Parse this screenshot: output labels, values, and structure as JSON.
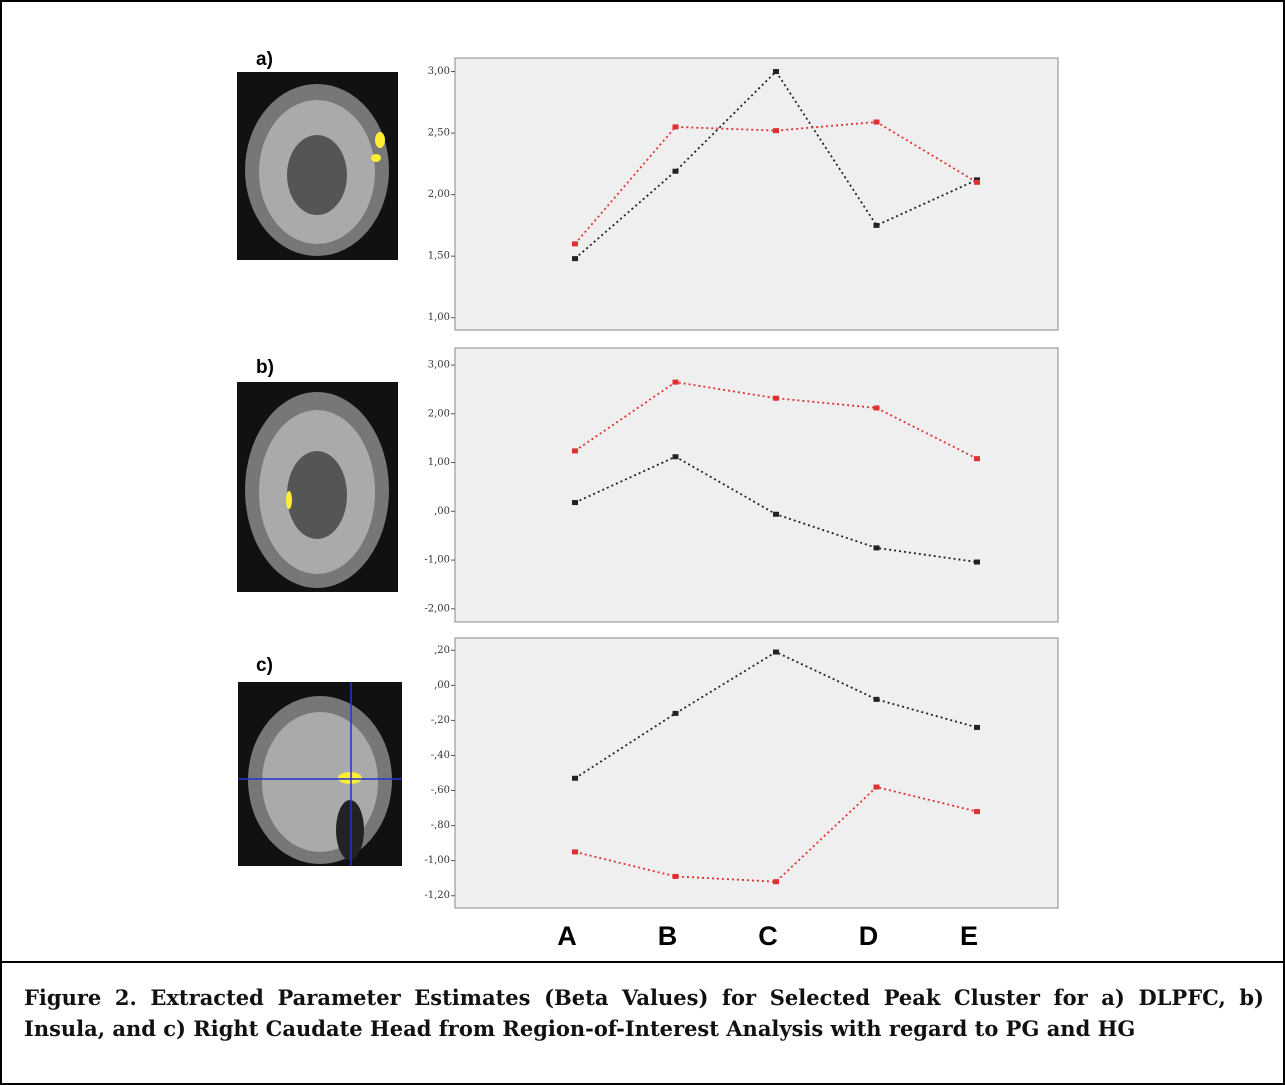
{
  "chart_data": [
    {
      "type": "line",
      "label": "a)",
      "ylim": [
        0.9,
        3.11
      ],
      "yticks": [
        {
          "value": 1,
          "label": "1,00"
        },
        {
          "value": 1.5,
          "label": "1,50"
        },
        {
          "value": 2,
          "label": "2,00"
        },
        {
          "value": 2.5,
          "label": "2,50"
        },
        {
          "value": 3,
          "label": "3,00"
        }
      ],
      "series": [
        {
          "color": "#222222",
          "values": [
            1.48,
            2.19,
            3.0,
            1.75,
            2.12
          ]
        },
        {
          "color": "#e03030",
          "values": [
            1.6,
            2.55,
            2.52,
            2.59,
            2.1
          ]
        }
      ]
    },
    {
      "type": "line",
      "label": "b)",
      "ylim": [
        -2.27,
        3.35
      ],
      "yticks": [
        {
          "value": -2,
          "label": "-2,00"
        },
        {
          "value": -1,
          "label": "-1,00"
        },
        {
          "value": 0,
          "label": ",00"
        },
        {
          "value": 1,
          "label": "1,00"
        },
        {
          "value": 2,
          "label": "2,00"
        },
        {
          "value": 3,
          "label": "3,00"
        }
      ],
      "series": [
        {
          "color": "#e03030",
          "values": [
            1.24,
            2.65,
            2.32,
            2.12,
            1.08
          ]
        },
        {
          "color": "#222222",
          "values": [
            0.18,
            1.12,
            -0.06,
            -0.75,
            -1.04
          ]
        }
      ]
    },
    {
      "type": "line",
      "label": "c)",
      "ylim": [
        -1.27,
        0.27
      ],
      "categories": [
        "A",
        "B",
        "C",
        "D",
        "E"
      ],
      "yticks": [
        {
          "value": -1.2,
          "label": "-1,20"
        },
        {
          "value": -1,
          "label": "-1,00"
        },
        {
          "value": -0.8,
          "label": "-,80"
        },
        {
          "value": -0.6,
          "label": "-,60"
        },
        {
          "value": -0.4,
          "label": "-,40"
        },
        {
          "value": -0.2,
          "label": "-,20"
        },
        {
          "value": 0,
          "label": ",00"
        },
        {
          "value": 0.2,
          "label": ",20"
        }
      ],
      "series": [
        {
          "color": "#222222",
          "values": [
            -0.53,
            -0.16,
            0.19,
            -0.08,
            -0.24
          ]
        },
        {
          "color": "#e03030",
          "values": [
            -0.95,
            -1.09,
            -1.12,
            -0.58,
            -0.72
          ]
        }
      ]
    }
  ],
  "caption": "Figure 2. Extracted Parameter Estimates (Beta Values) for Selected Peak Cluster for a) DLPFC, b) Insula, and c) Right Caudate Head from Region-of-Interest Analysis with regard to PG and HG"
}
